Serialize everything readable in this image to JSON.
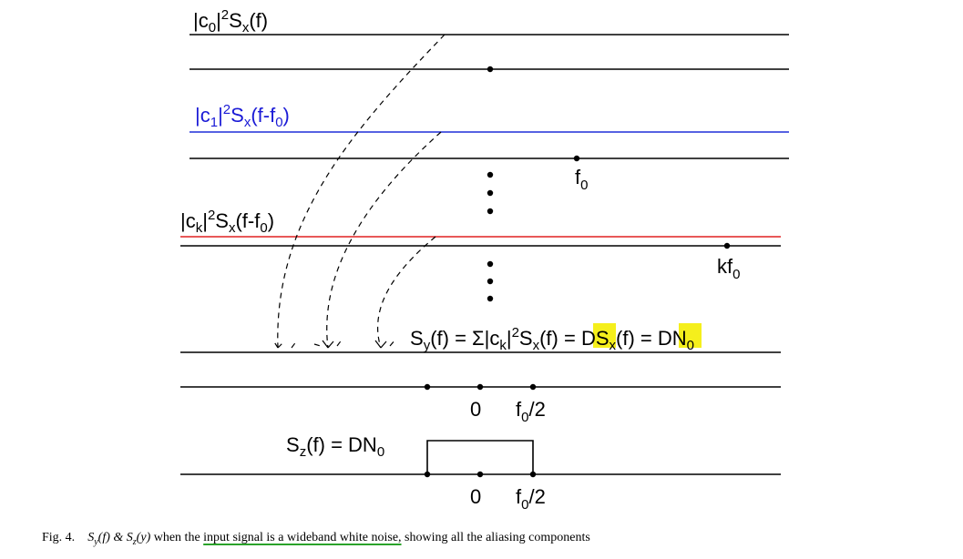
{
  "diagram": {
    "labels": {
      "c0_spectrum": "|c0|2Sx(f)",
      "c1_spectrum": "|c1|2Sx(f-f0)",
      "ck_spectrum": "|ck|2Sx(f-f0)",
      "f0": "f0",
      "kf0": "kf0",
      "sy_equation": "Sy(f) = Σ|ck|2Sx(f) = DSx(f) = DN0",
      "zero_1": "0",
      "f0_half_1": "f0/2",
      "sz_equation": "Sz(f) = DN0",
      "zero_2": "0",
      "f0_half_2": "f0/2"
    },
    "colors": {
      "c1_line": "#1f2fd8",
      "ck_line": "#e02020",
      "highlight": "#f5ef1c",
      "caption_underline": "#2aa22a"
    }
  },
  "caption": {
    "fig_label": "Fig. 4.",
    "math": "Sy(f) & Sz(y)",
    "text_before": "when the",
    "underlined": "input signal is a wideband white noise,",
    "text_after": "showing all the aliasing components"
  }
}
